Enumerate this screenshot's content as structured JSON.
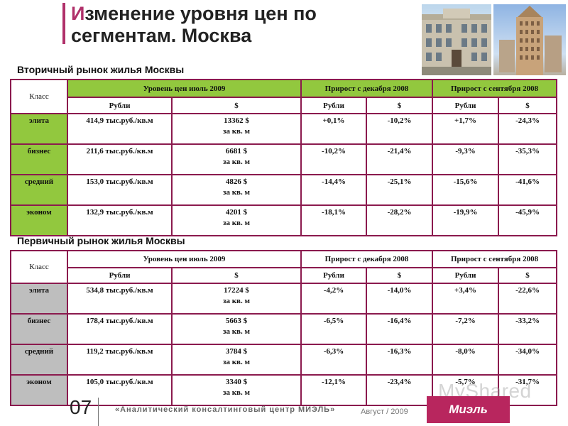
{
  "title": {
    "accent": "И",
    "rest": "зменение уровня цен по сегментам. Москва"
  },
  "secondary": {
    "label": "Вторичный рынок жилья Москвы",
    "headers": {
      "class": "Класс",
      "level": "Уровень цен июль 2009",
      "since_dec": "Прирост с декабря 2008",
      "since_sep": "Прирост с сентября 2008"
    },
    "subheaders": [
      "Рубли",
      "$",
      "Рубли",
      "$",
      "Рубли",
      "$"
    ],
    "rows": [
      {
        "cls": "элита",
        "rub": "414,9 тыс.руб./кв.м",
        "usd": "13362 $",
        "usd_sub": "за кв. м",
        "dec_rub": "+0,1%",
        "dec_usd": "-10,2%",
        "sep_rub": "+1,7%",
        "sep_usd": "-24,3%"
      },
      {
        "cls": "бизнес",
        "rub": "211,6 тыс.руб./кв.м",
        "usd": "6681 $",
        "usd_sub": "за кв. м",
        "dec_rub": "-10,2%",
        "dec_usd": "-21,4%",
        "sep_rub": "-9,3%",
        "sep_usd": "-35,3%"
      },
      {
        "cls": "средний",
        "rub": "153,0 тыс.руб./кв.м",
        "usd": "4826 $",
        "usd_sub": "за кв. м",
        "dec_rub": "-14,4%",
        "dec_usd": "-25,1%",
        "sep_rub": "-15,6%",
        "sep_usd": "-41,6%"
      },
      {
        "cls": "эконом",
        "rub": "132,9 тыс.руб./кв.м",
        "usd": "4201 $",
        "usd_sub": "за кв. м",
        "dec_rub": "-18,1%",
        "dec_usd": "-28,2%",
        "sep_rub": "-19,9%",
        "sep_usd": "-45,9%"
      }
    ]
  },
  "primary": {
    "label": "Первичный рынок жилья Москвы",
    "headers": {
      "class": "Класс",
      "level": "Уровень цен июль 2009",
      "since_dec": "Прирост с декабря 2008",
      "since_sep": "Прирост с сентября 2008"
    },
    "subheaders": [
      "Рубли",
      "$",
      "Рубли",
      "$",
      "Рубли",
      "$"
    ],
    "rows": [
      {
        "cls": "элита",
        "rub": "534,8 тыс.руб./кв.м",
        "usd": "17224 $",
        "usd_sub": "за кв. м",
        "dec_rub": "-4,2%",
        "dec_usd": "-14,0%",
        "sep_rub": "+3,4%",
        "sep_usd": "-22,6%"
      },
      {
        "cls": "бизнес",
        "rub": "178,4 тыс.руб./кв.м",
        "usd": "5663 $",
        "usd_sub": "за кв. м",
        "dec_rub": "-6,5%",
        "dec_usd": "-16,4%",
        "sep_rub": "-7,2%",
        "sep_usd": "-33,2%"
      },
      {
        "cls": "средний",
        "rub": "119,2 тыс.руб./кв.м",
        "usd": "3784 $",
        "usd_sub": "за кв. м",
        "dec_rub": "-6,3%",
        "dec_usd": "-16,3%",
        "sep_rub": "-8,0%",
        "sep_usd": "-34,0%"
      },
      {
        "cls": "эконом",
        "rub": "105,0 тыс.руб./кв.м",
        "usd": "3340 $",
        "usd_sub": "за кв. м",
        "dec_rub": "-12,1%",
        "dec_usd": "-23,4%",
        "sep_rub": "-5,7%",
        "sep_usd": "-31,7%"
      }
    ]
  },
  "footer": {
    "page_number": "07",
    "center_text": "«Аналитический консалтинговый центр МИЭЛЬ»",
    "date": "Август / 2009"
  },
  "logo_text": "Миэль",
  "watermark": "MyShared",
  "colors": {
    "accent": "#b0306a",
    "table_border": "#8b1a4e",
    "header_green": "#92c83e",
    "class_gray": "#bebebe",
    "logo_bg": "#b8265e"
  }
}
